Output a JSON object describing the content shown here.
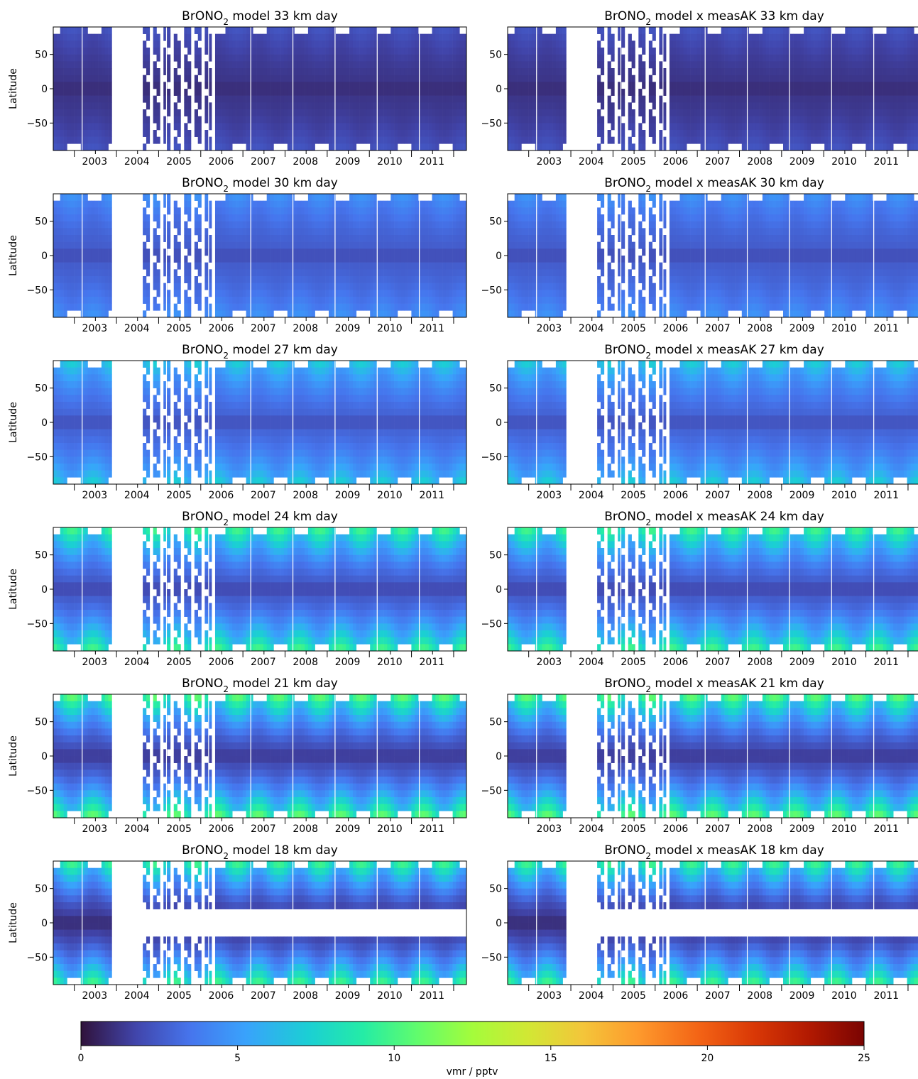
{
  "chart_data": {
    "type": "heatmap",
    "colormap": "turbo",
    "colorbar": {
      "label": "vmr / pptv",
      "range": [
        0,
        25
      ],
      "ticks": [
        "0",
        "5",
        "10",
        "15",
        "20",
        "25"
      ]
    },
    "ylabel": "Latitude",
    "ylim": [
      -90,
      90
    ],
    "yticks": [
      "50",
      "0",
      "−50"
    ],
    "xticks": [
      "2003",
      "2004",
      "2005",
      "2006",
      "2007",
      "2008",
      "2009",
      "2010",
      "2011"
    ],
    "title_prefix": "BrONO",
    "title_sub": "2",
    "columns": [
      " model",
      " model x measAK"
    ],
    "panels": [
      {
        "altitude": "33 km",
        "left_suffix": "  33 km day",
        "right_suffix": "  33 km  day",
        "peak_vmr": 2.5,
        "base_vmr": 1.2
      },
      {
        "altitude": "30 km",
        "left_suffix": "  30 km day",
        "right_suffix": "  30 km  day",
        "peak_vmr": 5.0,
        "base_vmr": 2.6
      },
      {
        "altitude": "27 km",
        "left_suffix": "  27 km day",
        "right_suffix": "  27 km  day",
        "peak_vmr": 7.5,
        "base_vmr": 2.8
      },
      {
        "altitude": "24 km",
        "left_suffix": "  24 km day",
        "right_suffix": "  24 km  day",
        "peak_vmr": 10.5,
        "base_vmr": 2.4
      },
      {
        "altitude": "21 km",
        "left_suffix": "  21 km day",
        "right_suffix": "  21 km  day",
        "peak_vmr": 11.5,
        "base_vmr": 1.8
      },
      {
        "altitude": "18 km",
        "left_suffix": "  18 km day",
        "right_suffix": "  18 km  day",
        "peak_vmr": 10.5,
        "base_vmr": 1.2
      }
    ]
  }
}
